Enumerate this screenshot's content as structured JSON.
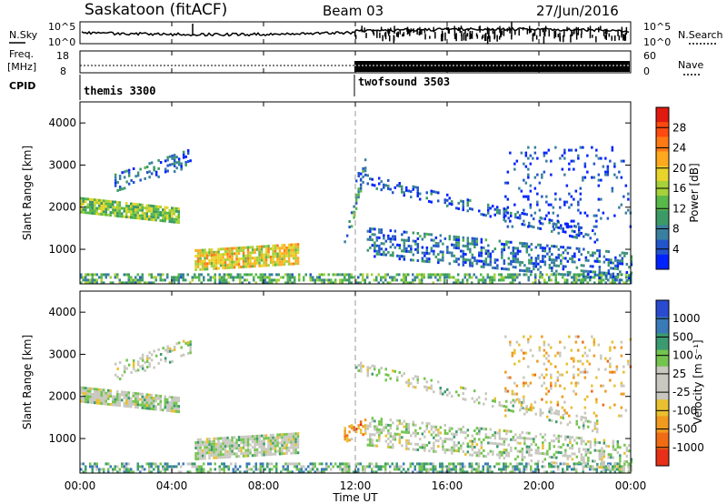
{
  "header": {
    "title": "Saskatoon (fitACF)",
    "beam": "Beam 03",
    "date": "27/Jun/2016"
  },
  "top_panels": {
    "nsky_label": "N.Sky",
    "nsearch_label": "N.Search",
    "noise_ticks_left": [
      "10^5",
      "10^0"
    ],
    "noise_ticks_right": [
      "10^5",
      "10^0"
    ],
    "freq_label_1": "Freq.",
    "freq_label_2": "[MHz]",
    "freq_ticks": [
      "18",
      "8"
    ],
    "nave_label": "Nave",
    "nave_ticks": [
      "60",
      "0"
    ],
    "cpid_label": "CPID",
    "modes": [
      {
        "name": "themis 3300",
        "start_hour": 0
      },
      {
        "name": "twofsound 3503",
        "start_hour": 12
      }
    ]
  },
  "chart_data": [
    {
      "type": "heatmap",
      "name": "power-panel",
      "ylabel": "Slant Range [km]",
      "yticks": [
        "1000",
        "2000",
        "3000",
        "4000"
      ],
      "ylim": [
        180,
        4500
      ],
      "xlim": [
        0,
        24
      ],
      "colorbar_label": "Power [dB]",
      "colorbar_ticks": [
        "4",
        "8",
        "12",
        "16",
        "20",
        "24",
        "28"
      ],
      "colors": [
        "#0022ff",
        "#2255cc",
        "#3a7fa0",
        "#3c9a66",
        "#58b84a",
        "#a6d13a",
        "#e8d42a",
        "#ffaa1e",
        "#ff7a14",
        "#ff4a10",
        "#e01a10"
      ],
      "regions": [
        {
          "t0": 0.0,
          "t1": 4.3,
          "r_center_start": 2050,
          "r_center_end": 1800,
          "width": 380,
          "level": 0.45,
          "density": 0.85
        },
        {
          "t0": 1.5,
          "t1": 4.8,
          "r_center_start": 2600,
          "r_center_end": 3200,
          "width": 400,
          "level": 0.2,
          "density": 0.35
        },
        {
          "t0": 5.0,
          "t1": 9.5,
          "r_center_start": 750,
          "r_center_end": 900,
          "width": 500,
          "level": 0.6,
          "density": 0.85
        },
        {
          "t0": 0.0,
          "t1": 24.0,
          "r_center_start": 320,
          "r_center_end": 320,
          "width": 220,
          "level": 0.35,
          "density": 0.55
        },
        {
          "t0": 11.5,
          "t1": 12.4,
          "r_center_start": 1100,
          "r_center_end": 3000,
          "width": 350,
          "level": 0.3,
          "density": 0.45
        },
        {
          "t0": 12.5,
          "t1": 24.0,
          "r_center_start": 1200,
          "r_center_end": 600,
          "width": 650,
          "level": 0.2,
          "density": 0.4
        },
        {
          "t0": 12.0,
          "t1": 22.5,
          "r_center_start": 2700,
          "r_center_end": 1300,
          "width": 300,
          "level": 0.15,
          "density": 0.3
        },
        {
          "t0": 18.5,
          "t1": 24.0,
          "r_center_start": 2500,
          "r_center_end": 2500,
          "width": 1900,
          "level": 0.1,
          "density": 0.12
        }
      ]
    },
    {
      "type": "heatmap",
      "name": "velocity-panel",
      "ylabel": "Slant Range [km]",
      "yticks": [
        "1000",
        "2000",
        "3000",
        "4000"
      ],
      "ylim": [
        180,
        4500
      ],
      "xlim": [
        0,
        24
      ],
      "colorbar_label": "Velocity [m s⁻¹]",
      "colorbar_ticks": [
        "1000",
        "500",
        "100",
        "25",
        "-25",
        "-100",
        "-500",
        "-1000"
      ],
      "colors": [
        "#2a4bd0",
        "#3a7ab8",
        "#3c9a70",
        "#74c450",
        "#c8c8c0",
        "#c8c8c0",
        "#e8c030",
        "#f09a20",
        "#f06c14",
        "#e83018"
      ],
      "regions": [
        {
          "t0": 0.0,
          "t1": 4.3,
          "r_center_start": 2050,
          "r_center_end": 1800,
          "width": 380,
          "level": 0.45,
          "density": 0.85
        },
        {
          "t0": 1.5,
          "t1": 4.8,
          "r_center_start": 2600,
          "r_center_end": 3200,
          "width": 400,
          "level": 0.45,
          "density": 0.35
        },
        {
          "t0": 5.0,
          "t1": 9.5,
          "r_center_start": 750,
          "r_center_end": 900,
          "width": 500,
          "level": 0.45,
          "density": 0.85
        },
        {
          "t0": 0.0,
          "t1": 24.0,
          "r_center_start": 320,
          "r_center_end": 320,
          "width": 220,
          "level": 0.3,
          "density": 0.55
        },
        {
          "t0": 11.5,
          "t1": 12.4,
          "r_center_start": 1100,
          "r_center_end": 1300,
          "width": 350,
          "level": 0.75,
          "density": 0.6
        },
        {
          "t0": 12.5,
          "t1": 24.0,
          "r_center_start": 1200,
          "r_center_end": 600,
          "width": 650,
          "level": 0.45,
          "density": 0.4
        },
        {
          "t0": 12.0,
          "t1": 22.5,
          "r_center_start": 2700,
          "r_center_end": 1300,
          "width": 300,
          "level": 0.45,
          "density": 0.3
        },
        {
          "t0": 18.5,
          "t1": 24.0,
          "r_center_start": 2500,
          "r_center_end": 2500,
          "width": 1900,
          "level": 0.65,
          "density": 0.12
        }
      ]
    }
  ],
  "x_axis": {
    "ticks": [
      "00:00",
      "04:00",
      "08:00",
      "12:00",
      "16:00",
      "20:00",
      "00:00"
    ],
    "label": "Time UT"
  }
}
